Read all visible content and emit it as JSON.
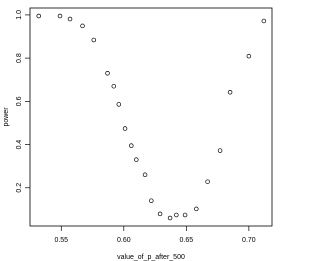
{
  "chart_data": {
    "type": "scatter",
    "xlabel": "value_of_p_after_500",
    "ylabel": "power",
    "x": [
      0.532,
      0.549,
      0.557,
      0.567,
      0.576,
      0.587,
      0.592,
      0.596,
      0.601,
      0.606,
      0.61,
      0.617,
      0.622,
      0.629,
      0.637,
      0.642,
      0.649,
      0.658,
      0.667,
      0.677,
      0.685,
      0.7,
      0.712
    ],
    "values": [
      0.995,
      0.995,
      0.981,
      0.949,
      0.884,
      0.73,
      0.67,
      0.586,
      0.474,
      0.395,
      0.33,
      0.26,
      0.14,
      0.079,
      0.06,
      0.074,
      0.074,
      0.102,
      0.228,
      0.372,
      0.642,
      0.809,
      0.972
    ],
    "color": "#000000",
    "xlim": [
      0.525,
      0.7185
    ],
    "ylim": [
      0.023,
      1.032
    ],
    "xticks": [
      0.55,
      {
        "value": 0.6,
        "label": "0.60"
      },
      0.65,
      {
        "value": 0.7,
        "label": "0.70"
      }
    ],
    "yticks": [
      0.2,
      0.4,
      0.6,
      0.8,
      {
        "value": 1,
        "label": "1.0"
      }
    ]
  }
}
